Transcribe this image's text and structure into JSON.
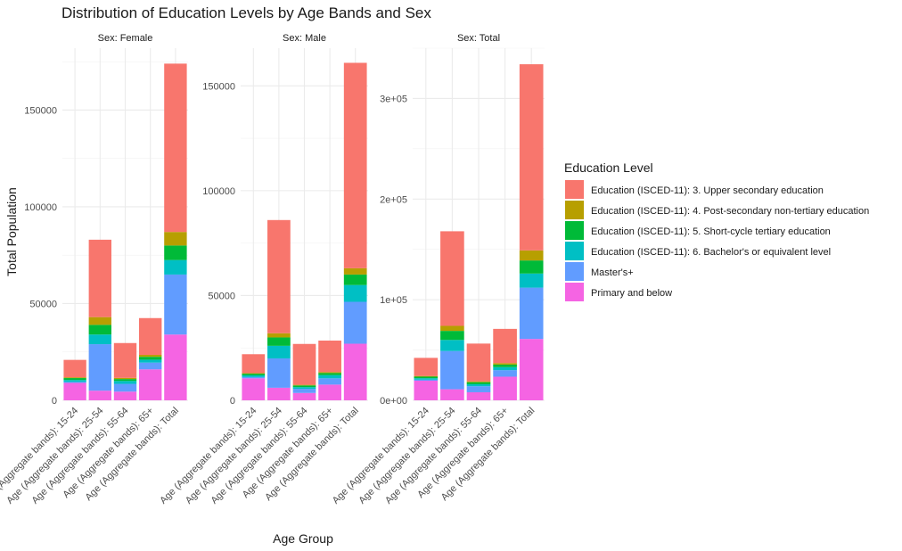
{
  "chart_data": {
    "type": "bar",
    "stacked": true,
    "title": "Distribution of Education Levels by Age Bands and Sex",
    "xlabel": "Age Group",
    "ylabel": "Total Population",
    "legend_title": "Education Level",
    "legend_position": "right",
    "grid": true,
    "categories": [
      "Age (Aggregate bands): 15-24",
      "Age (Aggregate bands): 25-54",
      "Age (Aggregate bands): 55-64",
      "Age (Aggregate bands): 65+",
      "Age (Aggregate bands): Total"
    ],
    "series_names": [
      "Education (ISCED-11): 3. Upper secondary education",
      "Education (ISCED-11): 4. Post-secondary non-tertiary education",
      "Education (ISCED-11): 5. Short-cycle tertiary education",
      "Education (ISCED-11): 6. Bachelor's or equivalent level",
      "Master's+",
      "Primary and below"
    ],
    "colors": [
      "#F8766D",
      "#B79F00",
      "#00BA38",
      "#00BFC4",
      "#619CFF",
      "#F564E3"
    ],
    "stack_order_bottom_to_top": [
      5,
      4,
      3,
      2,
      1,
      0
    ],
    "panels": [
      {
        "strip": "Sex: Female",
        "ylim": [
          0,
          182000
        ],
        "ticks": [
          0,
          50000,
          100000,
          150000
        ],
        "tick_labels": [
          "0",
          "50000",
          "100000",
          "150000"
        ],
        "series": [
          {
            "name": "Education (ISCED-11): 3. Upper secondary education",
            "values": [
              9000,
              40000,
              18000,
              19000,
              87000
            ]
          },
          {
            "name": "Education (ISCED-11): 4. Post-secondary non-tertiary education",
            "values": [
              400,
              4000,
              600,
              1000,
              7000
            ]
          },
          {
            "name": "Education (ISCED-11): 5. Short-cycle tertiary education",
            "values": [
              1000,
              5000,
              1000,
              1500,
              7500
            ]
          },
          {
            "name": "Education (ISCED-11): 6. Bachelor's or equivalent level",
            "values": [
              1000,
              5000,
              1500,
              1500,
              7500
            ]
          },
          {
            "name": "Master's+",
            "values": [
              500,
              24000,
              4000,
              3500,
              31000
            ]
          },
          {
            "name": "Primary and below",
            "values": [
              9000,
              5000,
              4500,
              16000,
              34000
            ]
          }
        ]
      },
      {
        "strip": "Sex: Male",
        "ylim": [
          0,
          168000
        ],
        "ticks": [
          0,
          50000,
          100000,
          150000
        ],
        "tick_labels": [
          "0",
          "50000",
          "100000",
          "150000"
        ],
        "series": [
          {
            "name": "Education (ISCED-11): 3. Upper secondary education",
            "values": [
              9000,
              54000,
              19500,
              15000,
              98000
            ]
          },
          {
            "name": "Education (ISCED-11): 4. Post-secondary non-tertiary education",
            "values": [
              300,
              2000,
              300,
              500,
              3000
            ]
          },
          {
            "name": "Education (ISCED-11): 5. Short-cycle tertiary education",
            "values": [
              800,
              4000,
              800,
              1000,
              5000
            ]
          },
          {
            "name": "Education (ISCED-11): 6. Bachelor's or equivalent level",
            "values": [
              800,
              6000,
              800,
              1500,
              8000
            ]
          },
          {
            "name": "Master's+",
            "values": [
              600,
              14000,
              2000,
              3000,
              20000
            ]
          },
          {
            "name": "Primary and below",
            "values": [
              10500,
              6000,
              3500,
              7500,
              27000
            ]
          }
        ]
      },
      {
        "strip": "Sex: Total",
        "ylim": [
          0,
          350000
        ],
        "ticks": [
          0,
          100000,
          200000,
          300000
        ],
        "tick_labels": [
          "0e+00",
          "1e+05",
          "2e+05",
          "3e+05"
        ],
        "series": [
          {
            "name": "Education (ISCED-11): 3. Upper secondary education",
            "values": [
              18000,
              94000,
              37500,
              34000,
              185000
            ]
          },
          {
            "name": "Education (ISCED-11): 4. Post-secondary non-tertiary education",
            "values": [
              700,
              5000,
              900,
              1500,
              10000
            ]
          },
          {
            "name": "Education (ISCED-11): 5. Short-cycle tertiary education",
            "values": [
              1500,
              9000,
              2000,
              2500,
              13000
            ]
          },
          {
            "name": "Education (ISCED-11): 6. Bachelor's or equivalent level",
            "values": [
              1500,
              11000,
              2000,
              3000,
              14000
            ]
          },
          {
            "name": "Master's+",
            "values": [
              1000,
              38000,
              6000,
              6500,
              51000
            ]
          },
          {
            "name": "Primary and below",
            "values": [
              19500,
              11000,
              8000,
              23500,
              61000
            ]
          }
        ]
      }
    ]
  }
}
